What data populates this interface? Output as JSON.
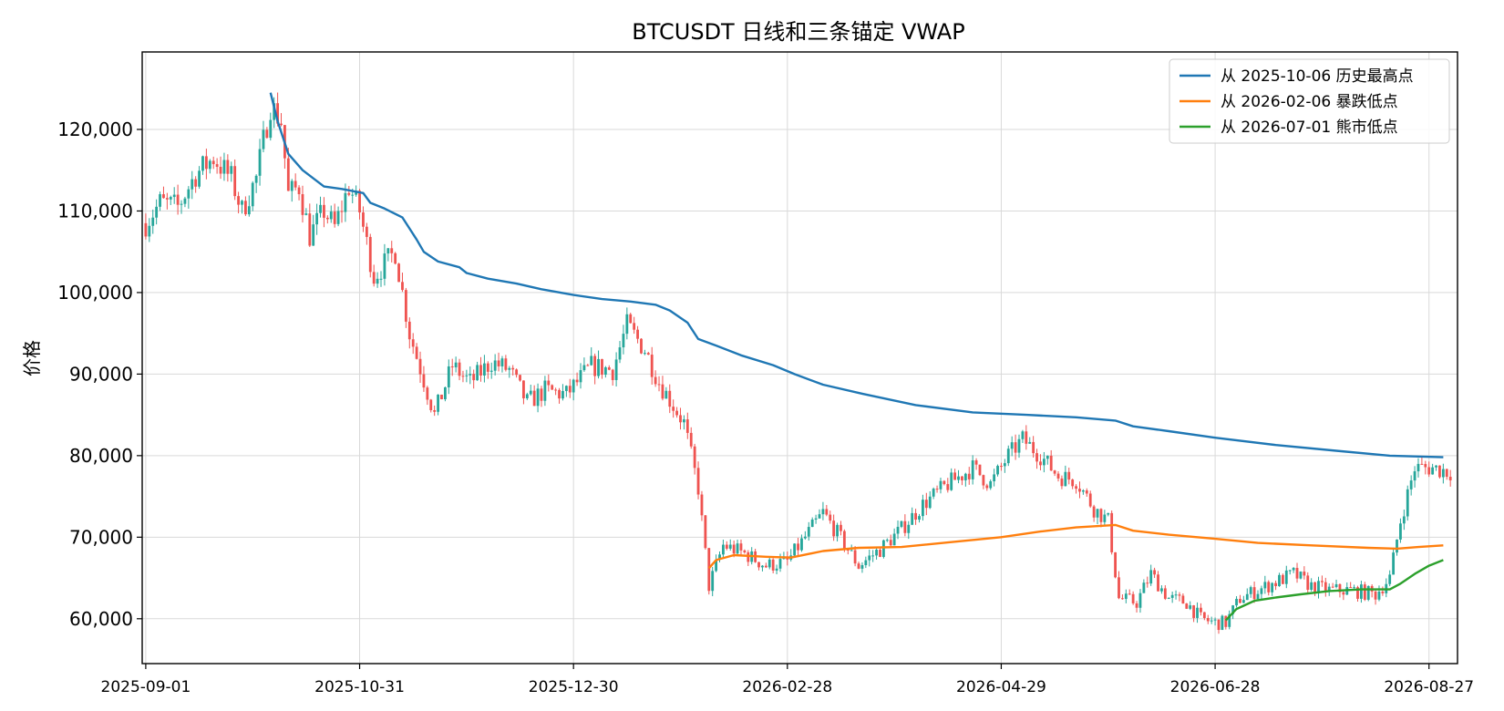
{
  "chart_data": {
    "type": "candlestick",
    "title": "BTCUSDT 日线和三条锚定 VWAP",
    "xlabel": "",
    "ylabel": "价格",
    "xlim": [
      "2025-08-31",
      "2026-09-04"
    ],
    "ylim": [
      54500,
      129500
    ],
    "x_ticks": [
      "2025-09-01",
      "2025-10-31",
      "2025-12-30",
      "2026-02-28",
      "2026-04-29",
      "2026-06-28",
      "2026-08-27"
    ],
    "y_ticks": [
      60000,
      70000,
      80000,
      90000,
      100000,
      110000,
      120000
    ],
    "y_tick_labels": [
      "60,000",
      "70,000",
      "80,000",
      "90,000",
      "100,000",
      "110,000",
      "120,000"
    ],
    "grid": true,
    "legend_position": "top-right",
    "colors": {
      "up": "#26a69a",
      "down": "#ef5350",
      "series": [
        "#1f77b4",
        "#ff7f0e",
        "#2ca02c"
      ]
    },
    "price_path": [
      [
        "2025-09-01",
        108500
      ],
      [
        "2025-09-05",
        111000
      ],
      [
        "2025-09-10",
        110500
      ],
      [
        "2025-09-15",
        114500
      ],
      [
        "2025-09-20",
        116500
      ],
      [
        "2025-09-25",
        114000
      ],
      [
        "2025-09-28",
        110000
      ],
      [
        "2025-10-02",
        114000
      ],
      [
        "2025-10-06",
        123000
      ],
      [
        "2025-10-09",
        121000
      ],
      [
        "2025-10-11",
        112000
      ],
      [
        "2025-10-14",
        113000
      ],
      [
        "2025-10-17",
        107000
      ],
      [
        "2025-10-21",
        110000
      ],
      [
        "2025-10-24",
        108000
      ],
      [
        "2025-10-28",
        113000
      ],
      [
        "2025-10-31",
        110000
      ],
      [
        "2025-11-04",
        102000
      ],
      [
        "2025-11-10",
        105000
      ],
      [
        "2025-11-14",
        95000
      ],
      [
        "2025-11-21",
        85000
      ],
      [
        "2025-11-26",
        91000
      ],
      [
        "2025-12-01",
        89000
      ],
      [
        "2025-12-07",
        91500
      ],
      [
        "2025-12-12",
        90500
      ],
      [
        "2025-12-17",
        86500
      ],
      [
        "2025-12-22",
        88000
      ],
      [
        "2025-12-28",
        87500
      ],
      [
        "2026-01-04",
        91000
      ],
      [
        "2026-01-10",
        90500
      ],
      [
        "2026-01-14",
        96000
      ],
      [
        "2026-01-19",
        93000
      ],
      [
        "2026-01-23",
        89000
      ],
      [
        "2026-01-30",
        84000
      ],
      [
        "2026-02-03",
        76000
      ],
      [
        "2026-02-06",
        64000
      ],
      [
        "2026-02-10",
        69000
      ],
      [
        "2026-02-16",
        68000
      ],
      [
        "2026-02-22",
        66500
      ],
      [
        "2026-02-28",
        67000
      ],
      [
        "2026-03-05",
        70000
      ],
      [
        "2026-03-10",
        73000
      ],
      [
        "2026-03-14",
        70500
      ],
      [
        "2026-03-20",
        66500
      ],
      [
        "2026-03-26",
        68500
      ],
      [
        "2026-04-01",
        71000
      ],
      [
        "2026-04-07",
        74000
      ],
      [
        "2026-04-14",
        76500
      ],
      [
        "2026-04-21",
        78500
      ],
      [
        "2026-04-26",
        76500
      ],
      [
        "2026-05-01",
        80000
      ],
      [
        "2026-05-05",
        82000
      ],
      [
        "2026-05-10",
        80000
      ],
      [
        "2026-05-15",
        77500
      ],
      [
        "2026-05-20",
        77000
      ],
      [
        "2026-05-25",
        73500
      ],
      [
        "2026-05-29",
        72000
      ],
      [
        "2026-06-01",
        62500
      ],
      [
        "2026-06-06",
        62000
      ],
      [
        "2026-06-10",
        65500
      ],
      [
        "2026-06-15",
        62500
      ],
      [
        "2026-06-20",
        62000
      ],
      [
        "2026-06-24",
        60000
      ],
      [
        "2026-06-28",
        59500
      ],
      [
        "2026-07-01",
        59500
      ],
      [
        "2026-07-05",
        62500
      ],
      [
        "2026-07-10",
        63500
      ],
      [
        "2026-07-15",
        64500
      ],
      [
        "2026-07-20",
        65500
      ],
      [
        "2026-07-25",
        64000
      ],
      [
        "2026-07-30",
        63500
      ],
      [
        "2026-08-05",
        63500
      ],
      [
        "2026-08-12",
        63000
      ],
      [
        "2026-08-16",
        65000
      ],
      [
        "2026-08-19",
        72000
      ],
      [
        "2026-08-23",
        78500
      ],
      [
        "2026-08-28",
        78500
      ],
      [
        "2026-09-02",
        78000
      ]
    ],
    "series": [
      {
        "name": "从 2025-10-06 历史最高点",
        "color": "#1f77b4",
        "points": [
          [
            "2025-10-06",
            124500
          ],
          [
            "2025-10-08",
            121000
          ],
          [
            "2025-10-11",
            117000
          ],
          [
            "2025-10-15",
            115000
          ],
          [
            "2025-10-21",
            113000
          ],
          [
            "2025-10-26",
            112700
          ],
          [
            "2025-11-01",
            112200
          ],
          [
            "2025-11-03",
            111000
          ],
          [
            "2025-11-07",
            110300
          ],
          [
            "2025-11-12",
            109200
          ],
          [
            "2025-11-16",
            106500
          ],
          [
            "2025-11-18",
            105000
          ],
          [
            "2025-11-22",
            103800
          ],
          [
            "2025-11-28",
            103100
          ],
          [
            "2025-11-30",
            102400
          ],
          [
            "2025-12-06",
            101700
          ],
          [
            "2025-12-14",
            101100
          ],
          [
            "2025-12-21",
            100400
          ],
          [
            "2025-12-30",
            99700
          ],
          [
            "2026-01-07",
            99200
          ],
          [
            "2026-01-15",
            98900
          ],
          [
            "2026-01-22",
            98500
          ],
          [
            "2026-01-26",
            97800
          ],
          [
            "2026-01-31",
            96300
          ],
          [
            "2026-02-03",
            94300
          ],
          [
            "2026-02-08",
            93500
          ],
          [
            "2026-02-15",
            92300
          ],
          [
            "2026-02-24",
            91100
          ],
          [
            "2026-03-02",
            90000
          ],
          [
            "2026-03-10",
            88700
          ],
          [
            "2026-03-21",
            87600
          ],
          [
            "2026-04-05",
            86200
          ],
          [
            "2026-04-21",
            85300
          ],
          [
            "2026-05-06",
            85000
          ],
          [
            "2026-05-20",
            84700
          ],
          [
            "2026-05-31",
            84300
          ],
          [
            "2026-06-05",
            83600
          ],
          [
            "2026-06-15",
            83000
          ],
          [
            "2026-06-28",
            82200
          ],
          [
            "2026-07-15",
            81300
          ],
          [
            "2026-08-01",
            80600
          ],
          [
            "2026-08-16",
            80000
          ],
          [
            "2026-08-31",
            79800
          ]
        ]
      },
      {
        "name": "从 2026-02-06 暴跌低点",
        "color": "#ff7f0e",
        "points": [
          [
            "2026-02-06",
            66200
          ],
          [
            "2026-02-08",
            67200
          ],
          [
            "2026-02-13",
            67800
          ],
          [
            "2026-02-22",
            67600
          ],
          [
            "2026-03-01",
            67500
          ],
          [
            "2026-03-10",
            68300
          ],
          [
            "2026-03-20",
            68700
          ],
          [
            "2026-04-01",
            68800
          ],
          [
            "2026-04-15",
            69400
          ],
          [
            "2026-04-29",
            70000
          ],
          [
            "2026-05-10",
            70700
          ],
          [
            "2026-05-20",
            71200
          ],
          [
            "2026-05-31",
            71500
          ],
          [
            "2026-06-05",
            70800
          ],
          [
            "2026-06-15",
            70300
          ],
          [
            "2026-06-28",
            69800
          ],
          [
            "2026-07-10",
            69300
          ],
          [
            "2026-07-25",
            69000
          ],
          [
            "2026-08-10",
            68700
          ],
          [
            "2026-08-18",
            68600
          ],
          [
            "2026-08-24",
            68800
          ],
          [
            "2026-08-31",
            69000
          ]
        ]
      },
      {
        "name": "从 2026-07-01 熊市低点",
        "color": "#2ca02c",
        "points": [
          [
            "2026-07-01",
            59800
          ],
          [
            "2026-07-04",
            61200
          ],
          [
            "2026-07-09",
            62200
          ],
          [
            "2026-07-15",
            62600
          ],
          [
            "2026-07-22",
            63000
          ],
          [
            "2026-07-30",
            63400
          ],
          [
            "2026-08-08",
            63600
          ],
          [
            "2026-08-16",
            63600
          ],
          [
            "2026-08-19",
            64300
          ],
          [
            "2026-08-23",
            65500
          ],
          [
            "2026-08-27",
            66500
          ],
          [
            "2026-08-31",
            67200
          ]
        ]
      }
    ]
  }
}
